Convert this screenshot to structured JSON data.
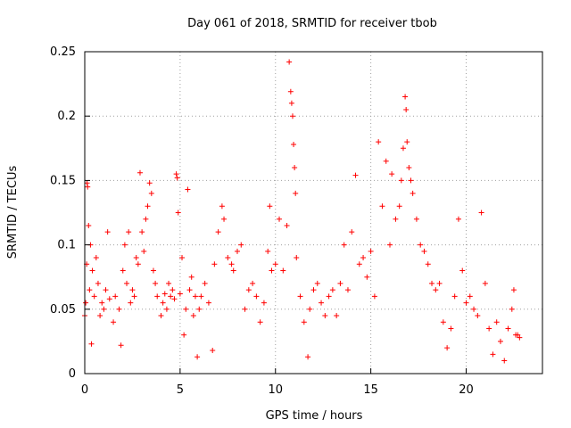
{
  "chart_data": {
    "type": "scatter",
    "title": "Day 061 of 2018, SRMTID for receiver tbob",
    "xlabel": "GPS time / hours",
    "ylabel": "SRMTID / TECUs",
    "xlim": [
      0,
      24
    ],
    "ylim": [
      0,
      0.25
    ],
    "xticks": [
      0,
      5,
      10,
      15,
      20
    ],
    "xtick_labels": [
      "0",
      "5",
      "10",
      "15",
      "20"
    ],
    "yticks": [
      0,
      0.05,
      0.1,
      0.15,
      0.2,
      0.25
    ],
    "ytick_labels": [
      "0",
      "0.05",
      "0.1",
      "0.15",
      "0.2",
      "0.25"
    ],
    "grid": true,
    "marker": "+",
    "color": "#ff0000",
    "series": [
      {
        "name": "SRMTID",
        "points": [
          [
            0.0,
            0.045
          ],
          [
            0.05,
            0.055
          ],
          [
            0.1,
            0.085
          ],
          [
            0.12,
            0.148
          ],
          [
            0.15,
            0.145
          ],
          [
            0.2,
            0.115
          ],
          [
            0.25,
            0.065
          ],
          [
            0.3,
            0.1
          ],
          [
            0.35,
            0.023
          ],
          [
            0.4,
            0.08
          ],
          [
            0.5,
            0.06
          ],
          [
            0.6,
            0.09
          ],
          [
            0.7,
            0.07
          ],
          [
            0.8,
            0.045
          ],
          [
            0.9,
            0.055
          ],
          [
            1.0,
            0.05
          ],
          [
            1.1,
            0.065
          ],
          [
            1.2,
            0.11
          ],
          [
            1.3,
            0.058
          ],
          [
            1.5,
            0.04
          ],
          [
            1.6,
            0.06
          ],
          [
            1.8,
            0.05
          ],
          [
            1.9,
            0.022
          ],
          [
            2.0,
            0.08
          ],
          [
            2.1,
            0.1
          ],
          [
            2.2,
            0.07
          ],
          [
            2.3,
            0.11
          ],
          [
            2.4,
            0.055
          ],
          [
            2.5,
            0.065
          ],
          [
            2.6,
            0.06
          ],
          [
            2.7,
            0.09
          ],
          [
            2.8,
            0.085
          ],
          [
            2.9,
            0.156
          ],
          [
            3.0,
            0.11
          ],
          [
            3.1,
            0.095
          ],
          [
            3.2,
            0.12
          ],
          [
            3.3,
            0.13
          ],
          [
            3.4,
            0.148
          ],
          [
            3.5,
            0.14
          ],
          [
            3.6,
            0.08
          ],
          [
            3.7,
            0.07
          ],
          [
            3.8,
            0.06
          ],
          [
            4.0,
            0.045
          ],
          [
            4.1,
            0.055
          ],
          [
            4.2,
            0.062
          ],
          [
            4.3,
            0.05
          ],
          [
            4.4,
            0.07
          ],
          [
            4.5,
            0.06
          ],
          [
            4.6,
            0.065
          ],
          [
            4.7,
            0.058
          ],
          [
            4.8,
            0.155
          ],
          [
            4.85,
            0.152
          ],
          [
            4.9,
            0.125
          ],
          [
            5.0,
            0.062
          ],
          [
            5.1,
            0.09
          ],
          [
            5.2,
            0.03
          ],
          [
            5.3,
            0.05
          ],
          [
            5.4,
            0.143
          ],
          [
            5.5,
            0.065
          ],
          [
            5.6,
            0.075
          ],
          [
            5.7,
            0.045
          ],
          [
            5.8,
            0.06
          ],
          [
            5.9,
            0.013
          ],
          [
            6.0,
            0.05
          ],
          [
            6.1,
            0.06
          ],
          [
            6.3,
            0.07
          ],
          [
            6.5,
            0.055
          ],
          [
            6.7,
            0.018
          ],
          [
            6.8,
            0.085
          ],
          [
            7.0,
            0.11
          ],
          [
            7.2,
            0.13
          ],
          [
            7.3,
            0.12
          ],
          [
            7.5,
            0.09
          ],
          [
            7.7,
            0.085
          ],
          [
            7.8,
            0.08
          ],
          [
            8.0,
            0.095
          ],
          [
            8.2,
            0.1
          ],
          [
            8.4,
            0.05
          ],
          [
            8.6,
            0.065
          ],
          [
            8.8,
            0.07
          ],
          [
            9.0,
            0.06
          ],
          [
            9.2,
            0.04
          ],
          [
            9.4,
            0.055
          ],
          [
            9.6,
            0.095
          ],
          [
            9.7,
            0.13
          ],
          [
            9.8,
            0.08
          ],
          [
            10.0,
            0.085
          ],
          [
            10.2,
            0.12
          ],
          [
            10.4,
            0.08
          ],
          [
            10.6,
            0.115
          ],
          [
            10.72,
            0.242
          ],
          [
            10.8,
            0.219
          ],
          [
            10.85,
            0.21
          ],
          [
            10.9,
            0.2
          ],
          [
            10.95,
            0.178
          ],
          [
            11.0,
            0.16
          ],
          [
            11.05,
            0.14
          ],
          [
            11.1,
            0.09
          ],
          [
            11.3,
            0.06
          ],
          [
            11.5,
            0.04
          ],
          [
            11.7,
            0.013
          ],
          [
            11.8,
            0.05
          ],
          [
            12.0,
            0.065
          ],
          [
            12.2,
            0.07
          ],
          [
            12.4,
            0.055
          ],
          [
            12.6,
            0.045
          ],
          [
            12.8,
            0.06
          ],
          [
            13.0,
            0.065
          ],
          [
            13.2,
            0.045
          ],
          [
            13.4,
            0.07
          ],
          [
            13.6,
            0.1
          ],
          [
            13.8,
            0.065
          ],
          [
            14.0,
            0.11
          ],
          [
            14.2,
            0.154
          ],
          [
            14.4,
            0.085
          ],
          [
            14.6,
            0.09
          ],
          [
            14.8,
            0.075
          ],
          [
            15.0,
            0.095
          ],
          [
            15.2,
            0.06
          ],
          [
            15.4,
            0.18
          ],
          [
            15.6,
            0.13
          ],
          [
            15.8,
            0.165
          ],
          [
            16.0,
            0.1
          ],
          [
            16.1,
            0.155
          ],
          [
            16.3,
            0.12
          ],
          [
            16.5,
            0.13
          ],
          [
            16.6,
            0.15
          ],
          [
            16.7,
            0.175
          ],
          [
            16.8,
            0.215
          ],
          [
            16.85,
            0.205
          ],
          [
            16.9,
            0.18
          ],
          [
            17.0,
            0.16
          ],
          [
            17.1,
            0.15
          ],
          [
            17.2,
            0.14
          ],
          [
            17.4,
            0.12
          ],
          [
            17.6,
            0.1
          ],
          [
            17.8,
            0.095
          ],
          [
            18.0,
            0.085
          ],
          [
            18.2,
            0.07
          ],
          [
            18.4,
            0.065
          ],
          [
            18.6,
            0.07
          ],
          [
            18.8,
            0.04
          ],
          [
            19.0,
            0.02
          ],
          [
            19.2,
            0.035
          ],
          [
            19.4,
            0.06
          ],
          [
            19.6,
            0.12
          ],
          [
            19.8,
            0.08
          ],
          [
            20.0,
            0.055
          ],
          [
            20.2,
            0.06
          ],
          [
            20.4,
            0.05
          ],
          [
            20.6,
            0.045
          ],
          [
            20.8,
            0.125
          ],
          [
            21.0,
            0.07
          ],
          [
            21.2,
            0.035
          ],
          [
            21.4,
            0.015
          ],
          [
            21.6,
            0.04
          ],
          [
            21.8,
            0.025
          ],
          [
            22.0,
            0.01
          ],
          [
            22.2,
            0.035
          ],
          [
            22.4,
            0.05
          ],
          [
            22.5,
            0.065
          ],
          [
            22.6,
            0.03
          ],
          [
            22.7,
            0.03
          ],
          [
            22.8,
            0.028
          ]
        ]
      }
    ]
  }
}
